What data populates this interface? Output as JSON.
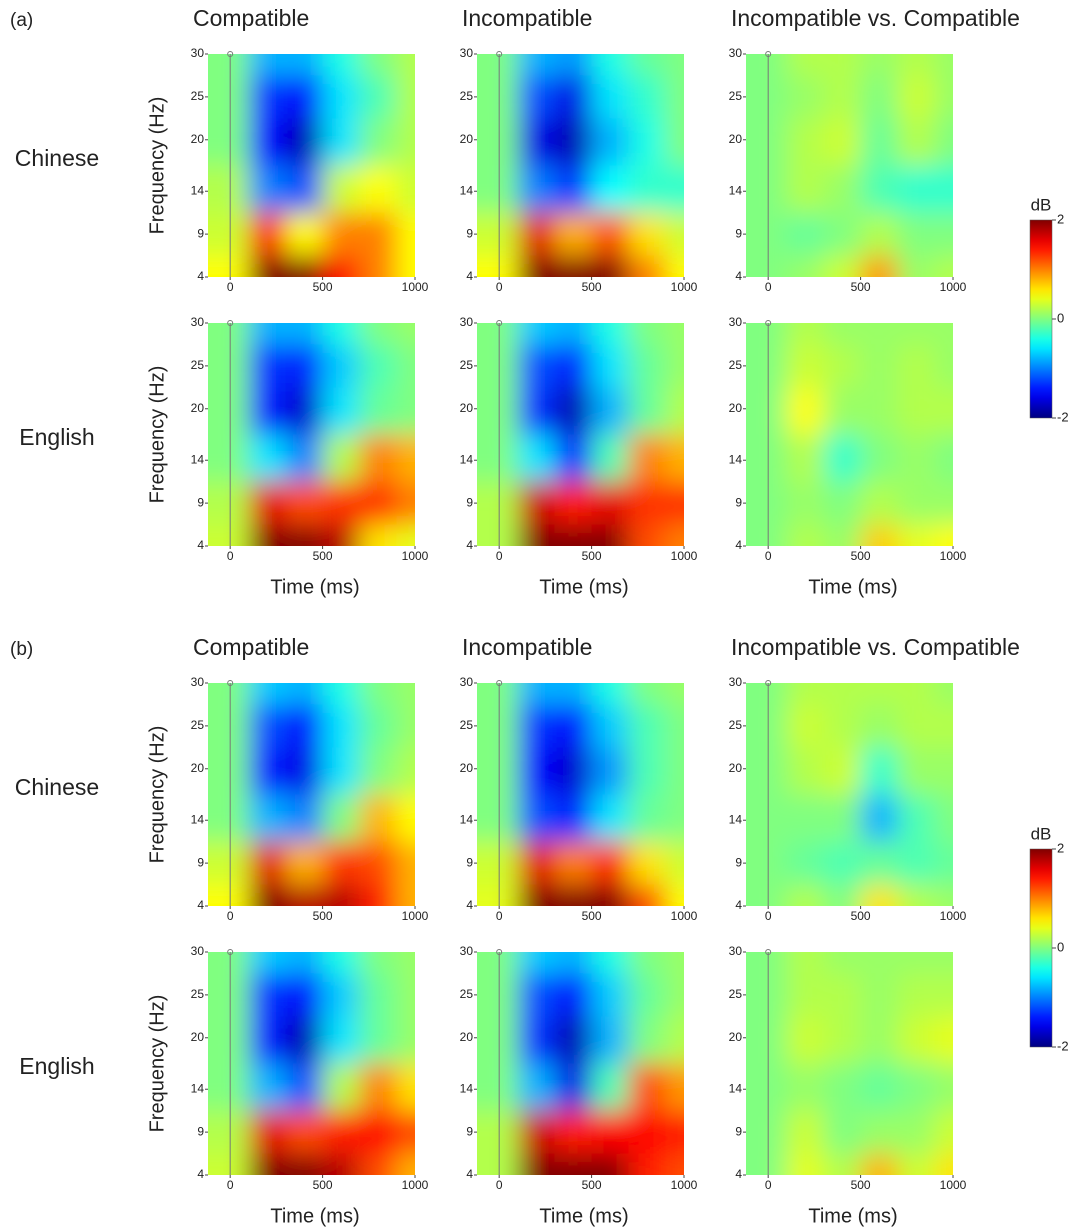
{
  "chart_data": [
    {
      "type": "heatmap",
      "label": "(a)",
      "columns": [
        "Compatible",
        "Incompatible",
        "Incompatible vs. Compatible"
      ],
      "rows": [
        "Chinese",
        "English"
      ],
      "xlabel": "Time (ms)",
      "ylabel": "Frequency (Hz)",
      "xlim": [
        -120,
        1000
      ],
      "xticks": [
        0,
        500,
        1000
      ],
      "ylim": [
        4,
        30
      ],
      "yticks": [
        4,
        9,
        14,
        20,
        25,
        30
      ],
      "x": [
        0,
        200,
        400,
        600,
        800,
        1000
      ],
      "y": [
        4,
        9,
        14,
        20,
        25,
        30
      ],
      "colormap": "jet",
      "zlabel": "dB",
      "zlim": [
        -2,
        2
      ],
      "zticks": [
        -2,
        0,
        2
      ],
      "z": [
        [
          [
            [
              0.5,
              2,
              2,
              1.5,
              1,
              0.5
            ],
            [
              0.3,
              1.5,
              0.5,
              1,
              1,
              0.5
            ],
            [
              0.2,
              -1,
              -1.2,
              0.3,
              0.5,
              0.3
            ],
            [
              0,
              -1.5,
              -1.8,
              -0.6,
              0,
              0.2
            ],
            [
              0,
              -1.3,
              -1.5,
              -0.6,
              -0.2,
              0.2
            ],
            [
              0,
              -0.8,
              -0.8,
              -0.4,
              0,
              0.2
            ]
          ],
          [
            [
              0.5,
              2,
              2,
              2,
              1,
              0.5
            ],
            [
              0.3,
              1.6,
              0.8,
              1.2,
              0.6,
              0.3
            ],
            [
              0,
              -1,
              -1.3,
              -0.5,
              -0.3,
              -0.3
            ],
            [
              0,
              -1.6,
              -1.8,
              -0.8,
              -0.4,
              0
            ],
            [
              0,
              -1.2,
              -1.6,
              -0.6,
              -0.3,
              0
            ],
            [
              0,
              -0.8,
              -0.9,
              -0.4,
              -0.1,
              0
            ]
          ],
          [
            [
              0,
              0.1,
              0.3,
              0.9,
              0.1,
              0.2
            ],
            [
              0,
              -0.1,
              0,
              0.2,
              0,
              0
            ],
            [
              0,
              0.2,
              0.1,
              -0.2,
              -0.3,
              -0.3
            ],
            [
              0,
              0.2,
              0.3,
              -0.1,
              0.2,
              0
            ],
            [
              0,
              0.1,
              0.2,
              0,
              0.3,
              0.1
            ],
            [
              0,
              0.2,
              0.2,
              0.1,
              0.2,
              0.1
            ]
          ]
        ],
        [
          [
            [
              0.3,
              2,
              2,
              1.8,
              0.6,
              0.4
            ],
            [
              0.2,
              1.6,
              1.2,
              1.3,
              1.3,
              1
            ],
            [
              0,
              -0.6,
              -1,
              0.2,
              1,
              0.8
            ],
            [
              0,
              -1.4,
              -1.7,
              -0.6,
              -0.1,
              0
            ],
            [
              0,
              -1.3,
              -1.4,
              -0.7,
              -0.2,
              0
            ],
            [
              0,
              -0.8,
              -0.8,
              -0.4,
              0,
              0.1
            ]
          ],
          [
            [
              0.2,
              2,
              2,
              2,
              1.2,
              1
            ],
            [
              0.2,
              1.7,
              1.4,
              1.6,
              1.3,
              1.3
            ],
            [
              0,
              -0.6,
              -1.4,
              -0.2,
              1,
              0.8
            ],
            [
              0,
              -1.3,
              -1.8,
              -0.8,
              -0.1,
              0.2
            ],
            [
              0,
              -1.2,
              -1.4,
              -0.6,
              -0.1,
              0.1
            ],
            [
              0,
              -0.7,
              -0.8,
              -0.4,
              0,
              0.1
            ]
          ],
          [
            [
              0,
              0.2,
              0.1,
              0.7,
              0.4,
              0.5
            ],
            [
              0,
              0.1,
              0,
              0.2,
              0.1,
              0.1
            ],
            [
              0,
              0.2,
              -0.3,
              0,
              0.1,
              0
            ],
            [
              0,
              0.5,
              0.1,
              0.1,
              0.2,
              0.2
            ],
            [
              0,
              0.3,
              0.2,
              0.1,
              0.2,
              0.1
            ],
            [
              0,
              0.2,
              0.1,
              0.1,
              0.1,
              0.1
            ]
          ]
        ]
      ]
    },
    {
      "type": "heatmap",
      "label": "(b)",
      "columns": [
        "Compatible",
        "Incompatible",
        "Incompatible vs. Compatible"
      ],
      "rows": [
        "Chinese",
        "English"
      ],
      "xlabel": "Time (ms)",
      "ylabel": "Frequency (Hz)",
      "xlim": [
        -120,
        1000
      ],
      "xticks": [
        0,
        500,
        1000
      ],
      "ylim": [
        4,
        30
      ],
      "yticks": [
        4,
        9,
        14,
        20,
        25,
        30
      ],
      "x": [
        0,
        200,
        400,
        600,
        800,
        1000
      ],
      "y": [
        4,
        9,
        14,
        20,
        25,
        30
      ],
      "colormap": "jet",
      "zlabel": "dB",
      "zlim": [
        -2,
        2
      ],
      "zticks": [
        -2,
        0,
        2
      ],
      "z": [
        [
          [
            [
              0.5,
              2,
              1.8,
              1.8,
              1.4,
              0.8
            ],
            [
              0.3,
              1.6,
              0.8,
              1.3,
              1.2,
              0.8
            ],
            [
              0,
              -0.8,
              -1,
              0,
              0.8,
              0.5
            ],
            [
              0,
              -1.4,
              -1.6,
              -0.6,
              0,
              0.2
            ],
            [
              0,
              -1.2,
              -1.5,
              -0.6,
              -0.1,
              0.1
            ],
            [
              0,
              -0.7,
              -0.8,
              -0.4,
              0,
              0.1
            ]
          ],
          [
            [
              0.4,
              2,
              2,
              2,
              1.2,
              0.5
            ],
            [
              0.3,
              1.6,
              1,
              1.4,
              0.6,
              0.3
            ],
            [
              0,
              -1.2,
              -1.4,
              -0.6,
              -0.1,
              0
            ],
            [
              0,
              -1.5,
              -1.7,
              -0.9,
              -0.2,
              0
            ],
            [
              0,
              -1.3,
              -1.5,
              -0.7,
              -0.2,
              0
            ],
            [
              0,
              -0.8,
              -0.8,
              -0.4,
              0,
              0.1
            ]
          ],
          [
            [
              0,
              0.2,
              0,
              0.6,
              0.2,
              0.1
            ],
            [
              0,
              -0.1,
              -0.2,
              -0.1,
              -0.2,
              -0.1
            ],
            [
              0,
              0,
              0,
              -0.8,
              -0.2,
              0
            ],
            [
              0,
              0.2,
              0.3,
              -0.3,
              0.1,
              0.1
            ],
            [
              0,
              0.3,
              0.2,
              0.1,
              0.2,
              0.2
            ],
            [
              0,
              0.2,
              0.2,
              0.2,
              0.2,
              0.1
            ]
          ]
        ],
        [
          [
            [
              0.3,
              2,
              2,
              1.8,
              1.2,
              0.8
            ],
            [
              0.2,
              1.6,
              1.2,
              1.4,
              1.5,
              1.2
            ],
            [
              0,
              -0.8,
              -1.2,
              0.2,
              1,
              0.6
            ],
            [
              0,
              -1.4,
              -1.8,
              -0.6,
              -0.1,
              0.1
            ],
            [
              0,
              -1.3,
              -1.5,
              -0.7,
              -0.1,
              0.1
            ],
            [
              0,
              -0.7,
              -0.8,
              -0.4,
              0,
              0.1
            ]
          ],
          [
            [
              0.2,
              2,
              2,
              2,
              1.4,
              1.2
            ],
            [
              0.2,
              1.7,
              1.4,
              1.5,
              1.5,
              1.4
            ],
            [
              0,
              -0.8,
              -1.6,
              -0.2,
              1.2,
              0.9
            ],
            [
              0,
              -1.3,
              -1.8,
              -0.8,
              0,
              0.2
            ],
            [
              0,
              -1.2,
              -1.5,
              -0.7,
              -0.1,
              0.1
            ],
            [
              0,
              -0.7,
              -0.8,
              -0.4,
              0,
              0.1
            ]
          ],
          [
            [
              0,
              0.4,
              0.2,
              0.8,
              0.3,
              0.6
            ],
            [
              0,
              0.3,
              0,
              0.1,
              0.1,
              0.3
            ],
            [
              0,
              0.1,
              0,
              -0.1,
              0,
              0.1
            ],
            [
              0,
              0.3,
              0.2,
              0.1,
              0.3,
              0.4
            ],
            [
              0,
              0.2,
              0.2,
              0.1,
              0.2,
              0.2
            ],
            [
              0,
              0.2,
              0.1,
              0.1,
              0.1,
              0.1
            ]
          ]
        ]
      ]
    }
  ]
}
